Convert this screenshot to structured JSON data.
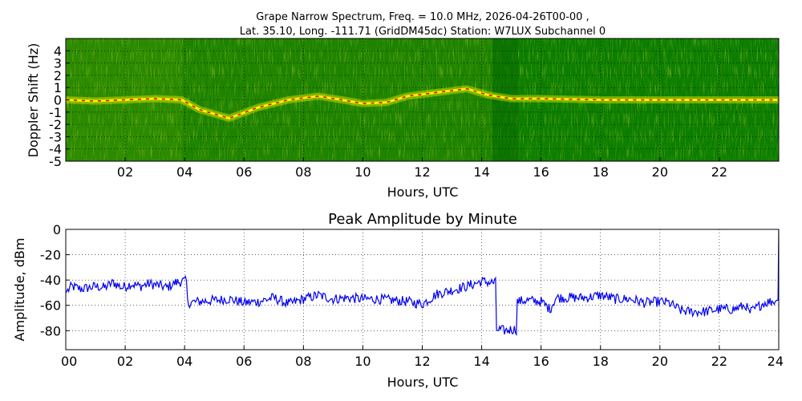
{
  "chart_data": [
    {
      "type": "heatmap",
      "title_line1": "Grape Narrow Spectrum, Freq. = 10.0 MHz, 2026-04-26T00-00 ,",
      "title_line2": "Lat.  35.10, Long. -111.71 (GridDM45dc) Station: W7LUX Subchannel 0",
      "xlabel": "Hours, UTC",
      "ylabel": "Doppler Shift (Hz)",
      "xlim": [
        0,
        24
      ],
      "ylim": [
        -5,
        5
      ],
      "xticks": [
        "02",
        "04",
        "06",
        "08",
        "10",
        "12",
        "14",
        "16",
        "18",
        "20",
        "22"
      ],
      "yticks": [
        "4",
        "3",
        "2",
        "1",
        "0",
        "-1",
        "-2",
        "-3",
        "-4",
        "-5"
      ],
      "colors": {
        "background": "#0a7a00",
        "signal": "#e8e800",
        "peak": "#e00000"
      },
      "doppler_trace": [
        [
          0.0,
          0.0
        ],
        [
          1.0,
          -0.1
        ],
        [
          2.0,
          0.0
        ],
        [
          3.0,
          0.1
        ],
        [
          3.9,
          0.0
        ],
        [
          4.5,
          -0.8
        ],
        [
          5.5,
          -1.5
        ],
        [
          6.5,
          -0.6
        ],
        [
          7.5,
          0.0
        ],
        [
          8.5,
          0.3
        ],
        [
          9.3,
          0.0
        ],
        [
          10.0,
          -0.3
        ],
        [
          10.8,
          -0.2
        ],
        [
          11.5,
          0.3
        ],
        [
          12.5,
          0.6
        ],
        [
          13.5,
          0.9
        ],
        [
          14.2,
          0.4
        ],
        [
          15.0,
          0.1
        ],
        [
          16.0,
          0.1
        ],
        [
          18.0,
          0.0
        ],
        [
          20.0,
          0.0
        ],
        [
          22.0,
          0.0
        ],
        [
          24.0,
          0.0
        ]
      ]
    },
    {
      "type": "line",
      "title": "Peak Amplitude by Minute",
      "xlabel": "Hours, UTC",
      "ylabel": "Amplitude, dBm",
      "xlim": [
        0,
        24
      ],
      "ylim": [
        -95,
        0
      ],
      "xticks": [
        "00",
        "02",
        "04",
        "06",
        "08",
        "10",
        "12",
        "14",
        "16",
        "18",
        "20",
        "22",
        "24"
      ],
      "yticks": [
        "0",
        "-20",
        "-40",
        "-60",
        "-80"
      ],
      "grid": true,
      "color": "#0000ee",
      "x": [
        0.0,
        0.2,
        0.5,
        0.8,
        1.0,
        1.3,
        1.6,
        1.9,
        2.2,
        2.5,
        2.8,
        3.1,
        3.4,
        3.7,
        3.95,
        4.1,
        4.5,
        5.0,
        5.5,
        6.0,
        6.5,
        7.0,
        7.5,
        8.0,
        8.5,
        9.0,
        9.5,
        10.0,
        10.5,
        11.0,
        11.5,
        12.0,
        12.5,
        13.0,
        13.5,
        14.0,
        14.3,
        14.5,
        14.8,
        15.0,
        15.2,
        15.5,
        16.0,
        16.3,
        16.5,
        17.0,
        17.5,
        18.0,
        18.5,
        19.0,
        19.5,
        20.0,
        20.3,
        20.7,
        21.0,
        21.5,
        22.0,
        22.5,
        22.9,
        23.0,
        23.5,
        23.95,
        24.0
      ],
      "values": [
        -50,
        -45,
        -47,
        -46,
        -45,
        -46,
        -42,
        -46,
        -43,
        -45,
        -43,
        -44,
        -46,
        -42,
        -41,
        -58,
        -57,
        -56,
        -55,
        -58,
        -57,
        -54,
        -59,
        -55,
        -52,
        -55,
        -54,
        -55,
        -55,
        -56,
        -57,
        -59,
        -51,
        -48,
        -45,
        -41,
        -42,
        -79,
        -80,
        -79,
        -57,
        -56,
        -57,
        -63,
        -54,
        -54,
        -54,
        -52,
        -55,
        -55,
        -58,
        -57,
        -58,
        -64,
        -65,
        -65,
        -63,
        -63,
        -60,
        -66,
        -58,
        -56,
        0
      ]
    }
  ]
}
